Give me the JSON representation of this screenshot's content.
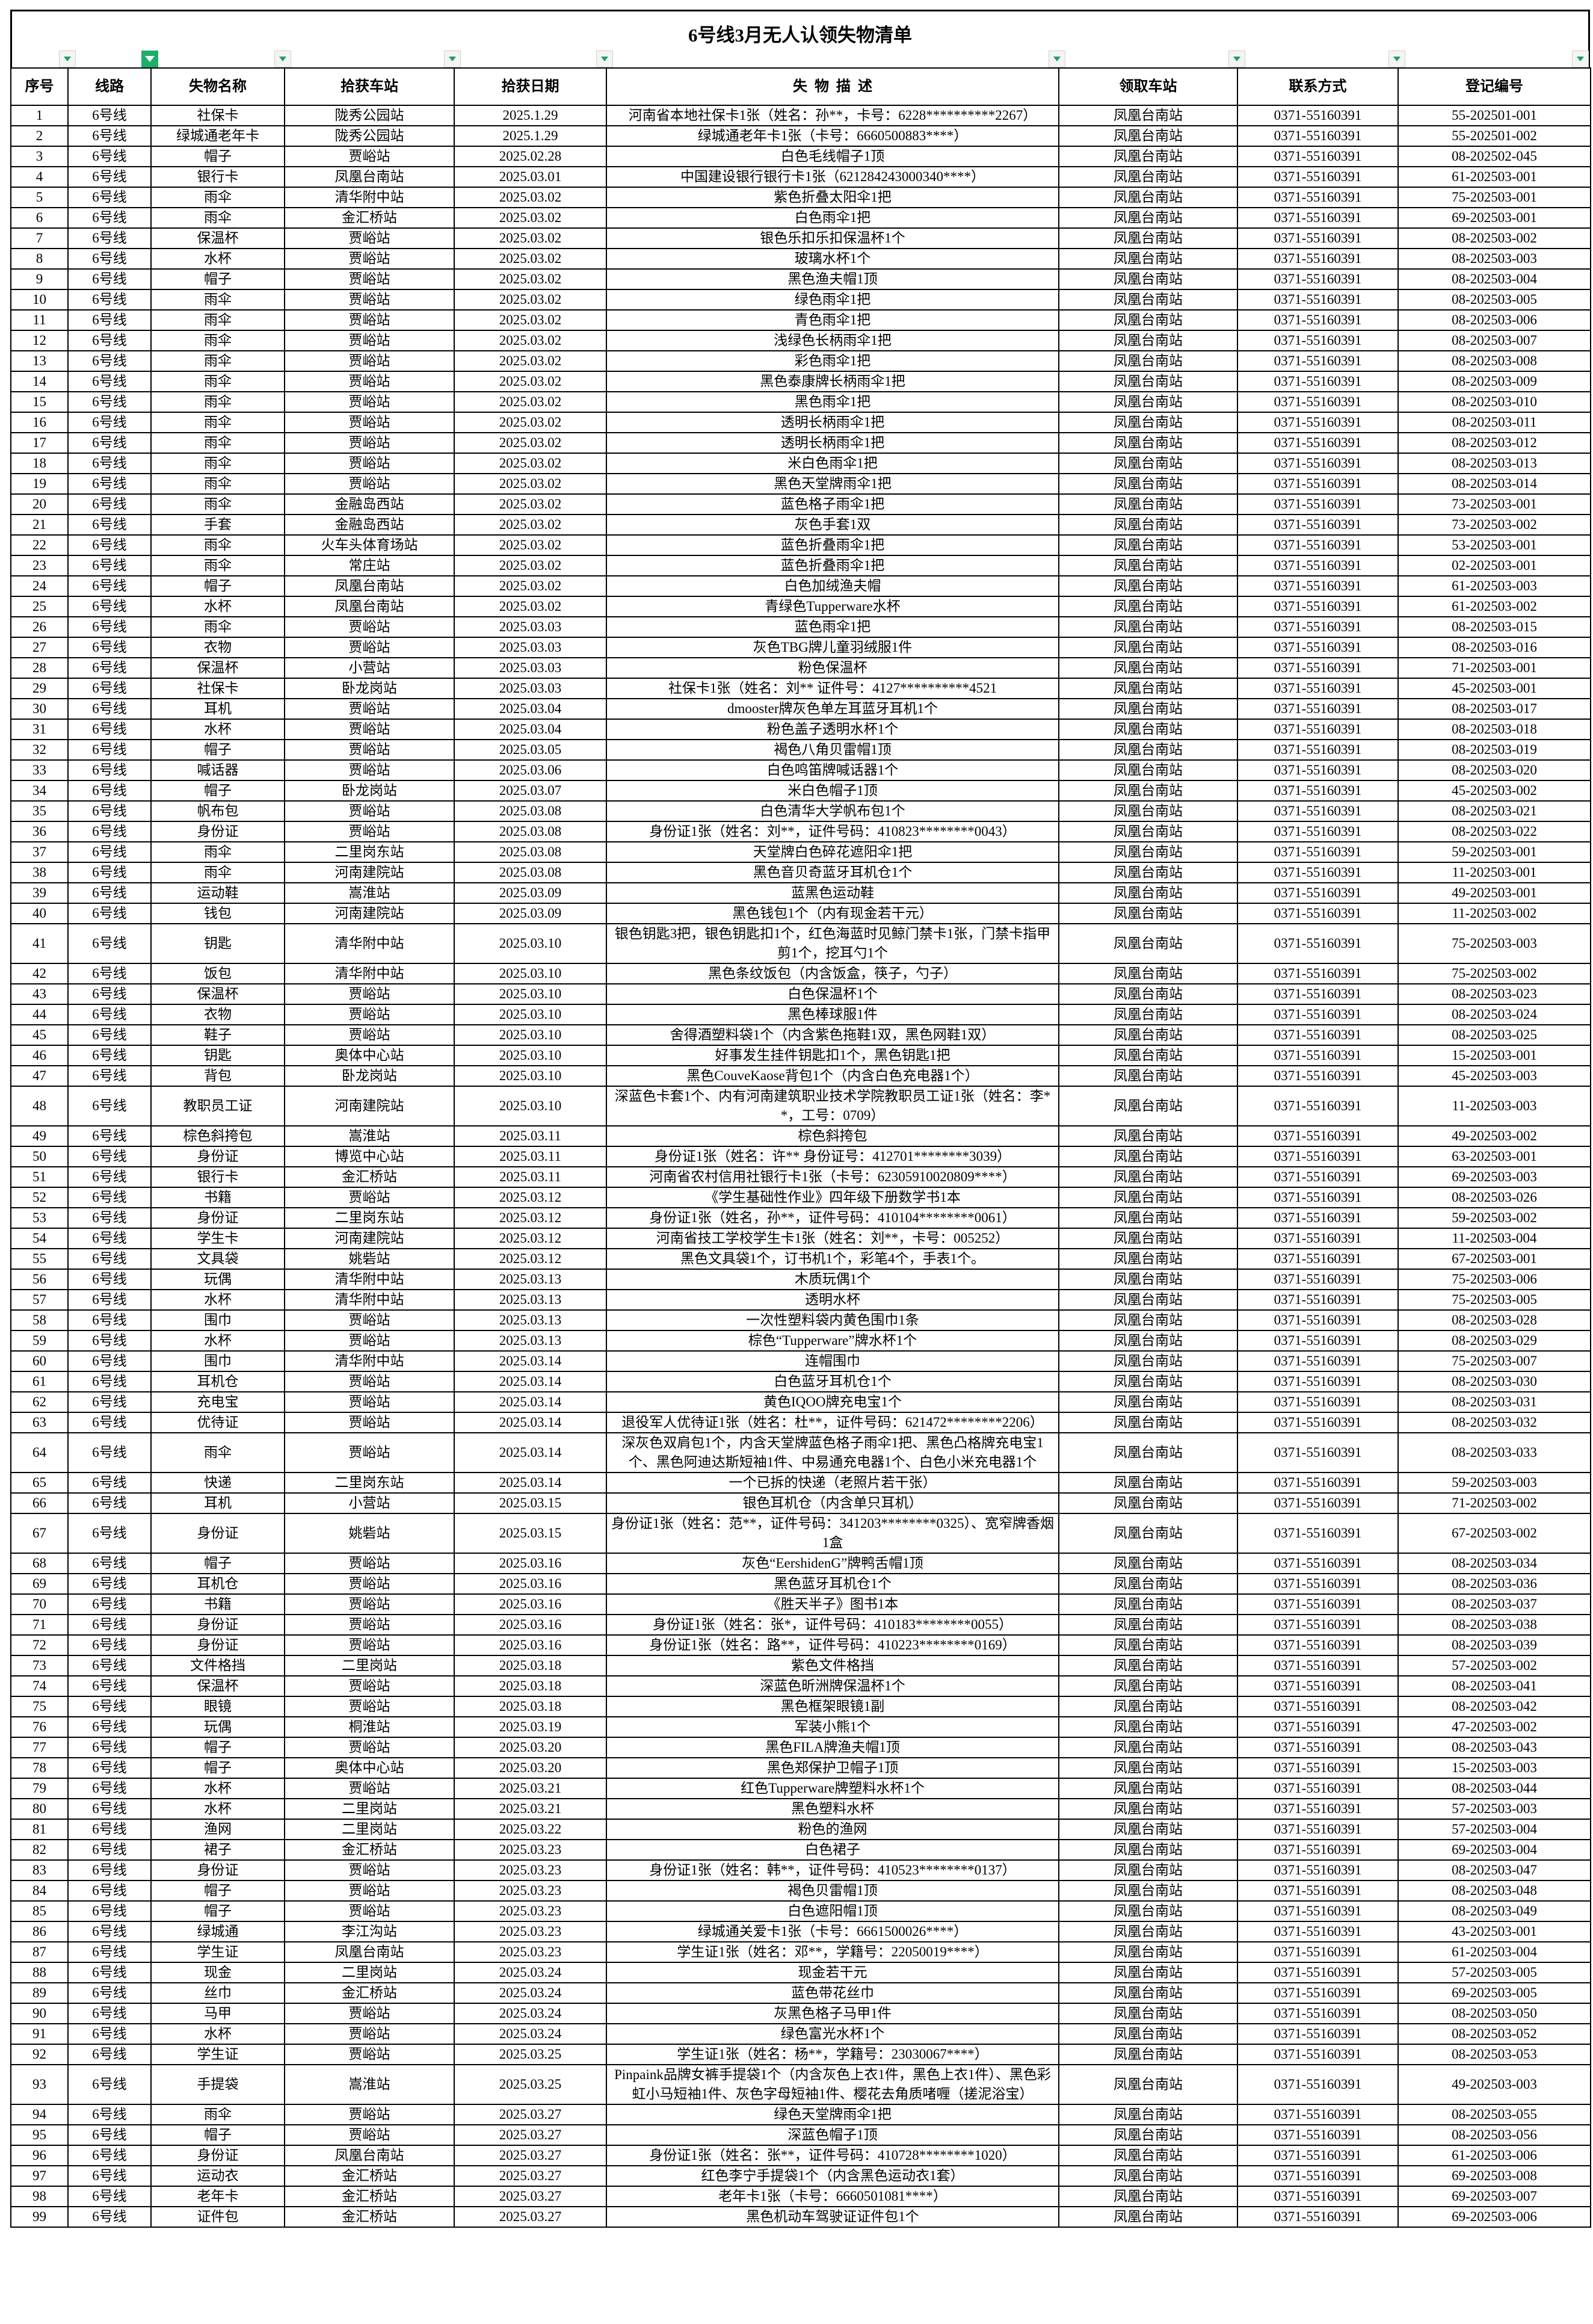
{
  "title": "6号线3月无人认领失物清单",
  "colors": {
    "filter_active": "#1fae6a",
    "filter_arrow": "#1aa260"
  },
  "headers": [
    "序号",
    "线路",
    "失物名称",
    "拾获车站",
    "拾获日期",
    "失  物  描  述",
    "领取车站",
    "联系方式",
    "登记编号"
  ],
  "filters": [
    {
      "column": "序号",
      "active": false
    },
    {
      "column": "线路",
      "active": true
    },
    {
      "column": "失物名称",
      "active": false
    },
    {
      "column": "拾获车站",
      "active": false
    },
    {
      "column": "拾获日期",
      "active": false
    },
    {
      "column": "失物描述",
      "active": false
    },
    {
      "column": "领取车站",
      "active": false
    },
    {
      "column": "联系方式",
      "active": false
    },
    {
      "column": "登记编号",
      "active": false
    }
  ],
  "rows": [
    [
      "1",
      "6号线",
      "社保卡",
      "陇秀公园站",
      "2025.1.29",
      "河南省本地社保卡1张（姓名：孙**，卡号：6228**********2267）",
      "凤凰台南站",
      "0371-55160391",
      "55-202501-001"
    ],
    [
      "2",
      "6号线",
      "绿城通老年卡",
      "陇秀公园站",
      "2025.1.29",
      "绿城通老年卡1张（卡号：6660500883****）",
      "凤凰台南站",
      "0371-55160391",
      "55-202501-002"
    ],
    [
      "3",
      "6号线",
      "帽子",
      "贾峪站",
      "2025.02.28",
      "白色毛线帽子1顶",
      "凤凰台南站",
      "0371-55160391",
      "08-202502-045"
    ],
    [
      "4",
      "6号线",
      "银行卡",
      "凤凰台南站",
      "2025.03.01",
      "中国建设银行银行卡1张（621284243000340****）",
      "凤凰台南站",
      "0371-55160391",
      "61-202503-001"
    ],
    [
      "5",
      "6号线",
      "雨伞",
      "清华附中站",
      "2025.03.02",
      "紫色折叠太阳伞1把",
      "凤凰台南站",
      "0371-55160391",
      "75-202503-001"
    ],
    [
      "6",
      "6号线",
      "雨伞",
      "金汇桥站",
      "2025.03.02",
      "白色雨伞1把",
      "凤凰台南站",
      "0371-55160391",
      "69-202503-001"
    ],
    [
      "7",
      "6号线",
      "保温杯",
      "贾峪站",
      "2025.03.02",
      "银色乐扣乐扣保温杯1个",
      "凤凰台南站",
      "0371-55160391",
      "08-202503-002"
    ],
    [
      "8",
      "6号线",
      "水杯",
      "贾峪站",
      "2025.03.02",
      "玻璃水杯1个",
      "凤凰台南站",
      "0371-55160391",
      "08-202503-003"
    ],
    [
      "9",
      "6号线",
      "帽子",
      "贾峪站",
      "2025.03.02",
      "黑色渔夫帽1顶",
      "凤凰台南站",
      "0371-55160391",
      "08-202503-004"
    ],
    [
      "10",
      "6号线",
      "雨伞",
      "贾峪站",
      "2025.03.02",
      "绿色雨伞1把",
      "凤凰台南站",
      "0371-55160391",
      "08-202503-005"
    ],
    [
      "11",
      "6号线",
      "雨伞",
      "贾峪站",
      "2025.03.02",
      "青色雨伞1把",
      "凤凰台南站",
      "0371-55160391",
      "08-202503-006"
    ],
    [
      "12",
      "6号线",
      "雨伞",
      "贾峪站",
      "2025.03.02",
      "浅绿色长柄雨伞1把",
      "凤凰台南站",
      "0371-55160391",
      "08-202503-007"
    ],
    [
      "13",
      "6号线",
      "雨伞",
      "贾峪站",
      "2025.03.02",
      "彩色雨伞1把",
      "凤凰台南站",
      "0371-55160391",
      "08-202503-008"
    ],
    [
      "14",
      "6号线",
      "雨伞",
      "贾峪站",
      "2025.03.02",
      "黑色泰康牌长柄雨伞1把",
      "凤凰台南站",
      "0371-55160391",
      "08-202503-009"
    ],
    [
      "15",
      "6号线",
      "雨伞",
      "贾峪站",
      "2025.03.02",
      "黑色雨伞1把",
      "凤凰台南站",
      "0371-55160391",
      "08-202503-010"
    ],
    [
      "16",
      "6号线",
      "雨伞",
      "贾峪站",
      "2025.03.02",
      "透明长柄雨伞1把",
      "凤凰台南站",
      "0371-55160391",
      "08-202503-011"
    ],
    [
      "17",
      "6号线",
      "雨伞",
      "贾峪站",
      "2025.03.02",
      "透明长柄雨伞1把",
      "凤凰台南站",
      "0371-55160391",
      "08-202503-012"
    ],
    [
      "18",
      "6号线",
      "雨伞",
      "贾峪站",
      "2025.03.02",
      "米白色雨伞1把",
      "凤凰台南站",
      "0371-55160391",
      "08-202503-013"
    ],
    [
      "19",
      "6号线",
      "雨伞",
      "贾峪站",
      "2025.03.02",
      "黑色天堂牌雨伞1把",
      "凤凰台南站",
      "0371-55160391",
      "08-202503-014"
    ],
    [
      "20",
      "6号线",
      "雨伞",
      "金融岛西站",
      "2025.03.02",
      "蓝色格子雨伞1把",
      "凤凰台南站",
      "0371-55160391",
      "73-202503-001"
    ],
    [
      "21",
      "6号线",
      "手套",
      "金融岛西站",
      "2025.03.02",
      "灰色手套1双",
      "凤凰台南站",
      "0371-55160391",
      "73-202503-002"
    ],
    [
      "22",
      "6号线",
      "雨伞",
      "火车头体育场站",
      "2025.03.02",
      "蓝色折叠雨伞1把",
      "凤凰台南站",
      "0371-55160391",
      "53-202503-001"
    ],
    [
      "23",
      "6号线",
      "雨伞",
      "常庄站",
      "2025.03.02",
      "蓝色折叠雨伞1把",
      "凤凰台南站",
      "0371-55160391",
      "02-202503-001"
    ],
    [
      "24",
      "6号线",
      "帽子",
      "凤凰台南站",
      "2025.03.02",
      "白色加绒渔夫帽",
      "凤凰台南站",
      "0371-55160391",
      "61-202503-003"
    ],
    [
      "25",
      "6号线",
      "水杯",
      "凤凰台南站",
      "2025.03.02",
      "青绿色Tupperware水杯",
      "凤凰台南站",
      "0371-55160391",
      "61-202503-002"
    ],
    [
      "26",
      "6号线",
      "雨伞",
      "贾峪站",
      "2025.03.03",
      "蓝色雨伞1把",
      "凤凰台南站",
      "0371-55160391",
      "08-202503-015"
    ],
    [
      "27",
      "6号线",
      "衣物",
      "贾峪站",
      "2025.03.03",
      "灰色TBG牌儿童羽绒服1件",
      "凤凰台南站",
      "0371-55160391",
      "08-202503-016"
    ],
    [
      "28",
      "6号线",
      "保温杯",
      "小营站",
      "2025.03.03",
      "粉色保温杯",
      "凤凰台南站",
      "0371-55160391",
      "71-202503-001"
    ],
    [
      "29",
      "6号线",
      "社保卡",
      "卧龙岗站",
      "2025.03.03",
      "社保卡1张（姓名：刘** 证件号：4127**********4521",
      "凤凰台南站",
      "0371-55160391",
      "45-202503-001"
    ],
    [
      "30",
      "6号线",
      "耳机",
      "贾峪站",
      "2025.03.04",
      "dmooster牌灰色单左耳蓝牙耳机1个",
      "凤凰台南站",
      "0371-55160391",
      "08-202503-017"
    ],
    [
      "31",
      "6号线",
      "水杯",
      "贾峪站",
      "2025.03.04",
      "粉色盖子透明水杯1个",
      "凤凰台南站",
      "0371-55160391",
      "08-202503-018"
    ],
    [
      "32",
      "6号线",
      "帽子",
      "贾峪站",
      "2025.03.05",
      "褐色八角贝雷帽1顶",
      "凤凰台南站",
      "0371-55160391",
      "08-202503-019"
    ],
    [
      "33",
      "6号线",
      "喊话器",
      "贾峪站",
      "2025.03.06",
      "白色鸣笛牌喊话器1个",
      "凤凰台南站",
      "0371-55160391",
      "08-202503-020"
    ],
    [
      "34",
      "6号线",
      "帽子",
      "卧龙岗站",
      "2025.03.07",
      "米白色帽子1顶",
      "凤凰台南站",
      "0371-55160391",
      "45-202503-002"
    ],
    [
      "35",
      "6号线",
      "帆布包",
      "贾峪站",
      "2025.03.08",
      "白色清华大学帆布包1个",
      "凤凰台南站",
      "0371-55160391",
      "08-202503-021"
    ],
    [
      "36",
      "6号线",
      "身份证",
      "贾峪站",
      "2025.03.08",
      "身份证1张（姓名：刘**，证件号码：410823********0043）",
      "凤凰台南站",
      "0371-55160391",
      "08-202503-022"
    ],
    [
      "37",
      "6号线",
      "雨伞",
      "二里岗东站",
      "2025.03.08",
      "天堂牌白色碎花遮阳伞1把",
      "凤凰台南站",
      "0371-55160391",
      "59-202503-001"
    ],
    [
      "38",
      "6号线",
      "雨伞",
      "河南建院站",
      "2025.03.08",
      "黑色音贝奇蓝牙耳机仓1个",
      "凤凰台南站",
      "0371-55160391",
      "11-202503-001"
    ],
    [
      "39",
      "6号线",
      "运动鞋",
      "嵩淮站",
      "2025.03.09",
      "蓝黑色运动鞋",
      "凤凰台南站",
      "0371-55160391",
      "49-202503-001"
    ],
    [
      "40",
      "6号线",
      "钱包",
      "河南建院站",
      "2025.03.09",
      "黑色钱包1个（内有现金若干元）",
      "凤凰台南站",
      "0371-55160391",
      "11-202503-002"
    ],
    [
      "41",
      "6号线",
      "钥匙",
      "清华附中站",
      "2025.03.10",
      "银色钥匙3把，银色钥匙扣1个，红色海蓝时见鲸门禁卡1张，门禁卡指甲剪1个，挖耳勺1个",
      "凤凰台南站",
      "0371-55160391",
      "75-202503-003"
    ],
    [
      "42",
      "6号线",
      "饭包",
      "清华附中站",
      "2025.03.10",
      "黑色条纹饭包（内含饭盒，筷子，勺子）",
      "凤凰台南站",
      "0371-55160391",
      "75-202503-002"
    ],
    [
      "43",
      "6号线",
      "保温杯",
      "贾峪站",
      "2025.03.10",
      "白色保温杯1个",
      "凤凰台南站",
      "0371-55160391",
      "08-202503-023"
    ],
    [
      "44",
      "6号线",
      "衣物",
      "贾峪站",
      "2025.03.10",
      "黑色棒球服1件",
      "凤凰台南站",
      "0371-55160391",
      "08-202503-024"
    ],
    [
      "45",
      "6号线",
      "鞋子",
      "贾峪站",
      "2025.03.10",
      "舍得酒塑料袋1个（内含紫色拖鞋1双，黑色网鞋1双）",
      "凤凰台南站",
      "0371-55160391",
      "08-202503-025"
    ],
    [
      "46",
      "6号线",
      "钥匙",
      "奥体中心站",
      "2025.03.10",
      "好事发生挂件钥匙扣1个，黑色钥匙1把",
      "凤凰台南站",
      "0371-55160391",
      "15-202503-001"
    ],
    [
      "47",
      "6号线",
      "背包",
      "卧龙岗站",
      "2025.03.10",
      "黑色CouveKaose背包1个（内含白色充电器1个）",
      "凤凰台南站",
      "0371-55160391",
      "45-202503-003"
    ],
    [
      "48",
      "6号线",
      "教职员工证",
      "河南建院站",
      "2025.03.10",
      "深蓝色卡套1个、内有河南建筑职业技术学院教职员工证1张（姓名：李**，工号：0709）",
      "凤凰台南站",
      "0371-55160391",
      "11-202503-003"
    ],
    [
      "49",
      "6号线",
      "棕色斜挎包",
      "嵩淮站",
      "2025.03.11",
      "棕色斜挎包",
      "凤凰台南站",
      "0371-55160391",
      "49-202503-002"
    ],
    [
      "50",
      "6号线",
      "身份证",
      "博览中心站",
      "2025.03.11",
      "身份证1张（姓名：许** 身份证号：412701********3039）",
      "凤凰台南站",
      "0371-55160391",
      "63-202503-001"
    ],
    [
      "51",
      "6号线",
      "银行卡",
      "金汇桥站",
      "2025.03.11",
      "河南省农村信用社银行卡1张（卡号：62305910020809****）",
      "凤凰台南站",
      "0371-55160391",
      "69-202503-003"
    ],
    [
      "52",
      "6号线",
      "书籍",
      "贾峪站",
      "2025.03.12",
      "《学生基础性作业》四年级下册数学书1本",
      "凤凰台南站",
      "0371-55160391",
      "08-202503-026"
    ],
    [
      "53",
      "6号线",
      "身份证",
      "二里岗东站",
      "2025.03.12",
      "身份证1张（姓名，孙**，证件号码：410104********0061）",
      "凤凰台南站",
      "0371-55160391",
      "59-202503-002"
    ],
    [
      "54",
      "6号线",
      "学生卡",
      "河南建院站",
      "2025.03.12",
      "河南省技工学校学生卡1张（姓名：刘**，卡号：005252）",
      "凤凰台南站",
      "0371-55160391",
      "11-202503-004"
    ],
    [
      "55",
      "6号线",
      "文具袋",
      "姚砦站",
      "2025.03.12",
      "黑色文具袋1个，订书机1个，彩笔4个，手表1个。",
      "凤凰台南站",
      "0371-55160391",
      "67-202503-001"
    ],
    [
      "56",
      "6号线",
      "玩偶",
      "清华附中站",
      "2025.03.13",
      "木质玩偶1个",
      "凤凰台南站",
      "0371-55160391",
      "75-202503-006"
    ],
    [
      "57",
      "6号线",
      "水杯",
      "清华附中站",
      "2025.03.13",
      "透明水杯",
      "凤凰台南站",
      "0371-55160391",
      "75-202503-005"
    ],
    [
      "58",
      "6号线",
      "围巾",
      "贾峪站",
      "2025.03.13",
      "一次性塑料袋内黄色围巾1条",
      "凤凰台南站",
      "0371-55160391",
      "08-202503-028"
    ],
    [
      "59",
      "6号线",
      "水杯",
      "贾峪站",
      "2025.03.13",
      "棕色“Tupperware”牌水杯1个",
      "凤凰台南站",
      "0371-55160391",
      "08-202503-029"
    ],
    [
      "60",
      "6号线",
      "围巾",
      "清华附中站",
      "2025.03.14",
      "连帽围巾",
      "凤凰台南站",
      "0371-55160391",
      "75-202503-007"
    ],
    [
      "61",
      "6号线",
      "耳机仓",
      "贾峪站",
      "2025.03.14",
      "白色蓝牙耳机仓1个",
      "凤凰台南站",
      "0371-55160391",
      "08-202503-030"
    ],
    [
      "62",
      "6号线",
      "充电宝",
      "贾峪站",
      "2025.03.14",
      "黄色IQOO牌充电宝1个",
      "凤凰台南站",
      "0371-55160391",
      "08-202503-031"
    ],
    [
      "63",
      "6号线",
      "优待证",
      "贾峪站",
      "2025.03.14",
      "退役军人优待证1张（姓名：杜**，证件号码：621472********2206）",
      "凤凰台南站",
      "0371-55160391",
      "08-202503-032"
    ],
    [
      "64",
      "6号线",
      "雨伞",
      "贾峪站",
      "2025.03.14",
      "深灰色双肩包1个，内含天堂牌蓝色格子雨伞1把、黑色凸格牌充电宝1个、黑色阿迪达斯短袖1件、中易通充电器1个、白色小米充电器1个",
      "凤凰台南站",
      "0371-55160391",
      "08-202503-033"
    ],
    [
      "65",
      "6号线",
      "快递",
      "二里岗东站",
      "2025.03.14",
      "一个已拆的快递（老照片若干张）",
      "凤凰台南站",
      "0371-55160391",
      "59-202503-003"
    ],
    [
      "66",
      "6号线",
      "耳机",
      "小营站",
      "2025.03.15",
      "银色耳机仓（内含单只耳机）",
      "凤凰台南站",
      "0371-55160391",
      "71-202503-002"
    ],
    [
      "67",
      "6号线",
      "身份证",
      "姚砦站",
      "2025.03.15",
      "身份证1张（姓名：范**，证件号码：341203********0325）、宽窄牌香烟1盒",
      "凤凰台南站",
      "0371-55160391",
      "67-202503-002"
    ],
    [
      "68",
      "6号线",
      "帽子",
      "贾峪站",
      "2025.03.16",
      "灰色“EershidenG”牌鸭舌帽1顶",
      "凤凰台南站",
      "0371-55160391",
      "08-202503-034"
    ],
    [
      "69",
      "6号线",
      "耳机仓",
      "贾峪站",
      "2025.03.16",
      "黑色蓝牙耳机仓1个",
      "凤凰台南站",
      "0371-55160391",
      "08-202503-036"
    ],
    [
      "70",
      "6号线",
      "书籍",
      "贾峪站",
      "2025.03.16",
      "《胜天半子》图书1本",
      "凤凰台南站",
      "0371-55160391",
      "08-202503-037"
    ],
    [
      "71",
      "6号线",
      "身份证",
      "贾峪站",
      "2025.03.16",
      "身份证1张（姓名：张*，证件号码：410183********0055）",
      "凤凰台南站",
      "0371-55160391",
      "08-202503-038"
    ],
    [
      "72",
      "6号线",
      "身份证",
      "贾峪站",
      "2025.03.16",
      "身份证1张（姓名：路**，证件号码：410223********0169）",
      "凤凰台南站",
      "0371-55160391",
      "08-202503-039"
    ],
    [
      "73",
      "6号线",
      "文件格挡",
      "二里岗站",
      "2025.03.18",
      "紫色文件格挡",
      "凤凰台南站",
      "0371-55160391",
      "57-202503-002"
    ],
    [
      "74",
      "6号线",
      "保温杯",
      "贾峪站",
      "2025.03.18",
      "深蓝色昕洲牌保温杯1个",
      "凤凰台南站",
      "0371-55160391",
      "08-202503-041"
    ],
    [
      "75",
      "6号线",
      "眼镜",
      "贾峪站",
      "2025.03.18",
      "黑色框架眼镜1副",
      "凤凰台南站",
      "0371-55160391",
      "08-202503-042"
    ],
    [
      "76",
      "6号线",
      "玩偶",
      "桐淮站",
      "2025.03.19",
      "军装小熊1个",
      "凤凰台南站",
      "0371-55160391",
      "47-202503-002"
    ],
    [
      "77",
      "6号线",
      "帽子",
      "贾峪站",
      "2025.03.20",
      "黑色FILA牌渔夫帽1顶",
      "凤凰台南站",
      "0371-55160391",
      "08-202503-043"
    ],
    [
      "78",
      "6号线",
      "帽子",
      "奥体中心站",
      "2025.03.20",
      "黑色郑保护卫帽子1顶",
      "凤凰台南站",
      "0371-55160391",
      "15-202503-003"
    ],
    [
      "79",
      "6号线",
      "水杯",
      "贾峪站",
      "2025.03.21",
      "红色Tupperware牌塑料水杯1个",
      "凤凰台南站",
      "0371-55160391",
      "08-202503-044"
    ],
    [
      "80",
      "6号线",
      "水杯",
      "二里岗站",
      "2025.03.21",
      "黑色塑料水杯",
      "凤凰台南站",
      "0371-55160391",
      "57-202503-003"
    ],
    [
      "81",
      "6号线",
      "渔网",
      "二里岗站",
      "2025.03.22",
      "粉色的渔网",
      "凤凰台南站",
      "0371-55160391",
      "57-202503-004"
    ],
    [
      "82",
      "6号线",
      "裙子",
      "金汇桥站",
      "2025.03.23",
      "白色裙子",
      "凤凰台南站",
      "0371-55160391",
      "69-202503-004"
    ],
    [
      "83",
      "6号线",
      "身份证",
      "贾峪站",
      "2025.03.23",
      "身份证1张（姓名：韩**，证件号码：410523********0137）",
      "凤凰台南站",
      "0371-55160391",
      "08-202503-047"
    ],
    [
      "84",
      "6号线",
      "帽子",
      "贾峪站",
      "2025.03.23",
      "褐色贝雷帽1顶",
      "凤凰台南站",
      "0371-55160391",
      "08-202503-048"
    ],
    [
      "85",
      "6号线",
      "帽子",
      "贾峪站",
      "2025.03.23",
      "白色遮阳帽1顶",
      "凤凰台南站",
      "0371-55160391",
      "08-202503-049"
    ],
    [
      "86",
      "6号线",
      "绿城通",
      "李江沟站",
      "2025.03.23",
      "绿城通关爱卡1张（卡号：6661500026****）",
      "凤凰台南站",
      "0371-55160391",
      "43-202503-001"
    ],
    [
      "87",
      "6号线",
      "学生证",
      "凤凰台南站",
      "2025.03.23",
      "学生证1张（姓名：邓**，学籍号：22050019****）",
      "凤凰台南站",
      "0371-55160391",
      "61-202503-004"
    ],
    [
      "88",
      "6号线",
      "现金",
      "二里岗站",
      "2025.03.24",
      "现金若干元",
      "凤凰台南站",
      "0371-55160391",
      "57-202503-005"
    ],
    [
      "89",
      "6号线",
      "丝巾",
      "金汇桥站",
      "2025.03.24",
      "蓝色带花丝巾",
      "凤凰台南站",
      "0371-55160391",
      "69-202503-005"
    ],
    [
      "90",
      "6号线",
      "马甲",
      "贾峪站",
      "2025.03.24",
      "灰黑色格子马甲1件",
      "凤凰台南站",
      "0371-55160391",
      "08-202503-050"
    ],
    [
      "91",
      "6号线",
      "水杯",
      "贾峪站",
      "2025.03.24",
      "绿色富光水杯1个",
      "凤凰台南站",
      "0371-55160391",
      "08-202503-052"
    ],
    [
      "92",
      "6号线",
      "学生证",
      "贾峪站",
      "2025.03.25",
      "学生证1张（姓名：杨**，学籍号：23030067****）",
      "凤凰台南站",
      "0371-55160391",
      "08-202503-053"
    ],
    [
      "93",
      "6号线",
      "手提袋",
      "嵩淮站",
      "2025.03.25",
      "Pinpaink品牌女裤手提袋1个（内含灰色上衣1件，黑色上衣1件）、黑色彩虹小马短袖1件、灰色字母短袖1件、樱花去角质啫喱（搓泥浴宝）",
      "凤凰台南站",
      "0371-55160391",
      "49-202503-003"
    ],
    [
      "94",
      "6号线",
      "雨伞",
      "贾峪站",
      "2025.03.27",
      "绿色天堂牌雨伞1把",
      "凤凰台南站",
      "0371-55160391",
      "08-202503-055"
    ],
    [
      "95",
      "6号线",
      "帽子",
      "贾峪站",
      "2025.03.27",
      "深蓝色帽子1顶",
      "凤凰台南站",
      "0371-55160391",
      "08-202503-056"
    ],
    [
      "96",
      "6号线",
      "身份证",
      "凤凰台南站",
      "2025.03.27",
      "身份证1张（姓名：张**，证件号码：410728********1020）",
      "凤凰台南站",
      "0371-55160391",
      "61-202503-006"
    ],
    [
      "97",
      "6号线",
      "运动衣",
      "金汇桥站",
      "2025.03.27",
      "红色李宁手提袋1个（内含黑色运动衣1套）",
      "凤凰台南站",
      "0371-55160391",
      "69-202503-008"
    ],
    [
      "98",
      "6号线",
      "老年卡",
      "金汇桥站",
      "2025.03.27",
      "老年卡1张（卡号：6660501081****）",
      "凤凰台南站",
      "0371-55160391",
      "69-202503-007"
    ],
    [
      "99",
      "6号线",
      "证件包",
      "金汇桥站",
      "2025.03.27",
      "黑色机动车驾驶证证件包1个",
      "凤凰台南站",
      "0371-55160391",
      "69-202503-006"
    ]
  ]
}
